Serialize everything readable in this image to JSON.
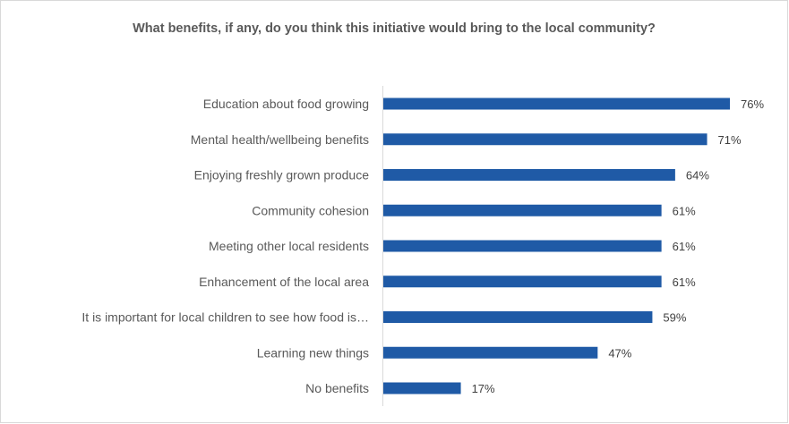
{
  "chart_data": {
    "type": "bar",
    "orientation": "horizontal",
    "title": "What benefits, if any, do you think this initiative would bring to the local community?",
    "categories": [
      "Education about food growing",
      "Mental health/wellbeing benefits",
      "Enjoying freshly grown produce",
      "Community cohesion",
      "Meeting other local residents",
      "Enhancement of the local area",
      "It is important for local children to see how food is…",
      "Learning new things",
      "No benefits"
    ],
    "values": [
      76,
      71,
      64,
      61,
      61,
      61,
      59,
      47,
      17
    ],
    "value_labels": [
      "76%",
      "71%",
      "64%",
      "61%",
      "61%",
      "61%",
      "59%",
      "47%",
      "17%"
    ],
    "value_suffix": "%",
    "xlim": [
      0,
      76
    ],
    "bar_color": "#1f5aa6",
    "grid": false,
    "legend": "none"
  }
}
